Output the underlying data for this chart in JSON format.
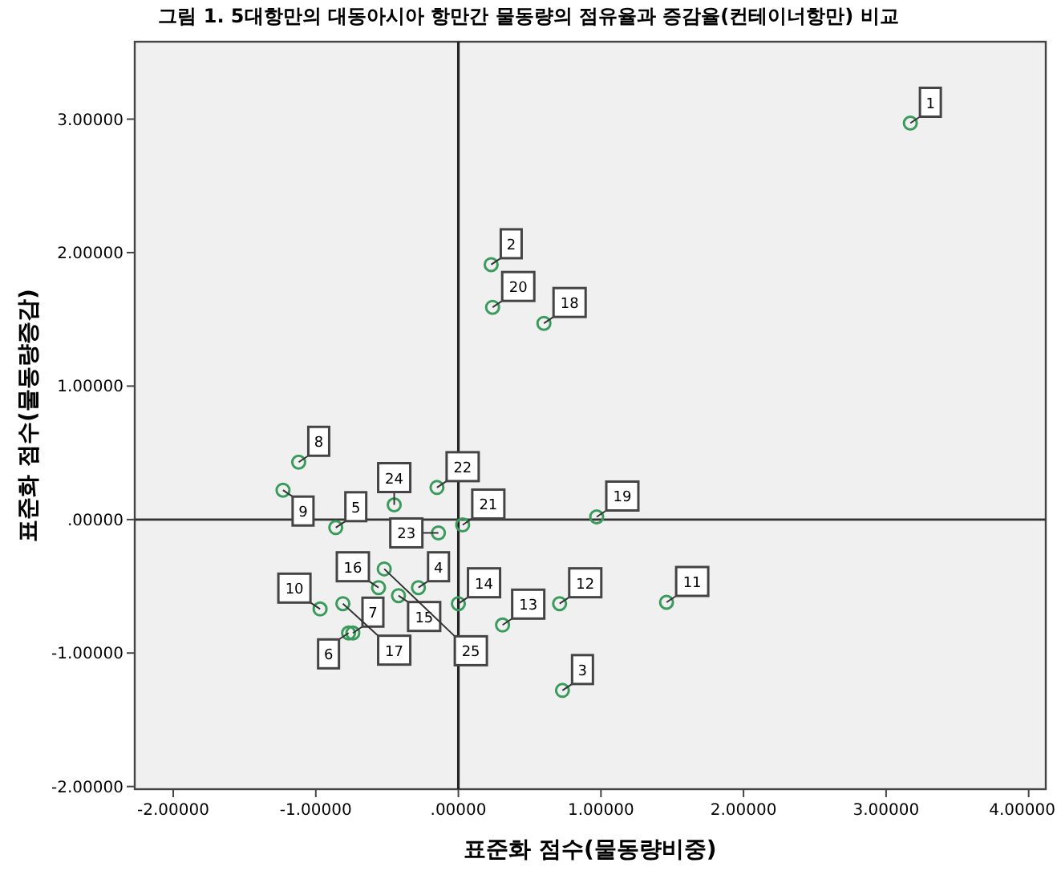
{
  "chart_data": {
    "type": "scatter",
    "title": "그림 1. 5대항만의 대동아시아 항만간 물동량의 점유율과 증감율(컨테이너항만) 비교",
    "xlabel": "표준화 점수(물동량비중)",
    "ylabel": "표준화 점수(물동량증감)",
    "x": [
      3.17,
      0.23,
      0.73,
      -0.28,
      -0.86,
      -0.77,
      -0.74,
      -1.12,
      -1.23,
      -0.97,
      1.46,
      0.71,
      0.31,
      0.0,
      -0.42,
      -0.56,
      -0.81,
      0.6,
      0.97,
      0.24,
      0.03,
      -0.15,
      -0.14,
      -0.45,
      -0.52
    ],
    "values": [
      2.97,
      1.91,
      -1.28,
      -0.51,
      -0.06,
      -0.85,
      -0.85,
      0.43,
      0.22,
      -0.67,
      -0.62,
      -0.63,
      -0.79,
      -0.63,
      -0.57,
      -0.51,
      -0.63,
      1.47,
      0.02,
      1.59,
      -0.04,
      0.24,
      -0.1,
      0.11,
      -0.37
    ],
    "color": "#3a9b5c",
    "marker": "circle",
    "xlim": [
      -2.27,
      4.12
    ],
    "ylim": [
      -2.02,
      3.58
    ],
    "xticks": [
      {
        "value": -2,
        "label": "-2.00000"
      },
      {
        "value": -1,
        "label": "-1.00000"
      },
      {
        "value": 0,
        "label": ".00000"
      },
      {
        "value": 1,
        "label": "1.00000"
      },
      {
        "value": 2,
        "label": "2.00000"
      },
      {
        "value": 3,
        "label": "3.00000"
      },
      {
        "value": 4,
        "label": "4.00000"
      }
    ],
    "yticks": [
      {
        "value": -2,
        "label": "-2.00000"
      },
      {
        "value": -1,
        "label": "-1.00000"
      },
      {
        "value": 0,
        "label": ".00000"
      },
      {
        "value": 1,
        "label": "1.00000"
      },
      {
        "value": 2,
        "label": "2.00000"
      },
      {
        "value": 3,
        "label": "3.00000"
      }
    ],
    "ref_lines": [
      {
        "axis": "x",
        "value": 0
      },
      {
        "axis": "y",
        "value": 0
      }
    ],
    "annotations": [
      {
        "text": "1",
        "x": 3.17,
        "y": 2.97
      },
      {
        "text": "2",
        "x": 0.23,
        "y": 1.91
      },
      {
        "text": "3",
        "x": 0.73,
        "y": -1.28
      },
      {
        "text": "4",
        "x": -0.28,
        "y": -0.51
      },
      {
        "text": "5",
        "x": -0.86,
        "y": -0.06
      },
      {
        "text": "6",
        "x": -0.77,
        "y": -0.85
      },
      {
        "text": "7",
        "x": -0.74,
        "y": -0.85
      },
      {
        "text": "8",
        "x": -1.12,
        "y": 0.43
      },
      {
        "text": "9",
        "x": -1.23,
        "y": 0.22
      },
      {
        "text": "10",
        "x": -0.97,
        "y": -0.67
      },
      {
        "text": "11",
        "x": 1.46,
        "y": -0.62
      },
      {
        "text": "12",
        "x": 0.71,
        "y": -0.63
      },
      {
        "text": "13",
        "x": 0.31,
        "y": -0.79
      },
      {
        "text": "14",
        "x": 0.0,
        "y": -0.63
      },
      {
        "text": "15",
        "x": -0.42,
        "y": -0.57
      },
      {
        "text": "16",
        "x": -0.56,
        "y": -0.51
      },
      {
        "text": "17",
        "x": -0.81,
        "y": -0.63
      },
      {
        "text": "18",
        "x": 0.6,
        "y": 1.47
      },
      {
        "text": "19",
        "x": 0.97,
        "y": 0.02
      },
      {
        "text": "20",
        "x": 0.24,
        "y": 1.59
      },
      {
        "text": "21",
        "x": 0.03,
        "y": -0.04
      },
      {
        "text": "22",
        "x": -0.15,
        "y": 0.24
      },
      {
        "text": "23",
        "x": -0.14,
        "y": -0.1
      },
      {
        "text": "24",
        "x": -0.45,
        "y": 0.11
      },
      {
        "text": "25",
        "x": -0.52,
        "y": -0.37
      }
    ]
  }
}
